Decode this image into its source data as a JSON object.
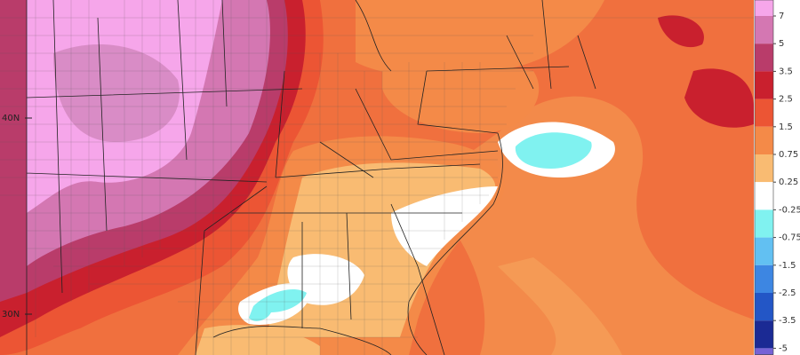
{
  "map": {
    "latitude_labels": [
      "40N",
      "30N"
    ],
    "colorbar": {
      "labels": [
        "7",
        "5",
        "3.5",
        "2.5",
        "1.5",
        "0.75",
        "0.25",
        "-0.25",
        "-0.75",
        "-1.5",
        "-2.5",
        "-3.5",
        "-5"
      ],
      "colors": [
        "#f6a6ea",
        "#d477b2",
        "#b93c6a",
        "#c9202e",
        "#ec5534",
        "#f48a48",
        "#f9bb72",
        "#ffffff",
        "#80f2f0",
        "#62c0f2",
        "#3d86e2",
        "#2356c6",
        "#1b2a94",
        "#7662d6"
      ]
    }
  }
}
